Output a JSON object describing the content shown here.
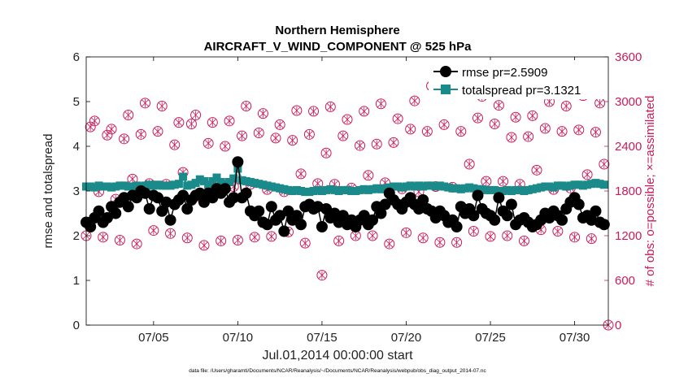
{
  "chart_data": {
    "type": "line",
    "title": "Northern Hemisphere",
    "subtitle": "AIRCRAFT_V_WIND_COMPONENT @ 525 hPa",
    "xlabel": "Jul.01,2014 00:00:00 start",
    "ylabel_left": "rmse and totalspread",
    "ylabel_right": "# of obs: o=possible; ×=assimilated",
    "footnote": "data file: /Users/gharamti/Documents/NCAR/Reanalysis/~/Documents/NCAR/Reanalysis/webpub/obs_diag_output_2014-07.nc",
    "xlim": [
      1,
      32
    ],
    "x_ticks": [
      5,
      10,
      15,
      20,
      25,
      30
    ],
    "x_tick_labels": [
      "07/05",
      "07/10",
      "07/15",
      "07/20",
      "07/25",
      "07/30"
    ],
    "ylim_left": [
      0,
      6
    ],
    "y_ticks_left": [
      "0",
      "1",
      "2",
      "3",
      "4",
      "5",
      "6"
    ],
    "ylim_right": [
      0,
      3600
    ],
    "y_ticks_right": [
      "0",
      "600",
      "1200",
      "1800",
      "2400",
      "3000",
      "3600"
    ],
    "legend": [
      "rmse pr=2.5909",
      "totalspread pr=3.1321"
    ],
    "legend_location": "top-right",
    "colors": {
      "rmse": "#000000",
      "totalspread": "#1a8a8a",
      "obs": "#cc1a5a"
    },
    "series": [
      {
        "name": "rmse pr=2.5909",
        "axis": "left",
        "x": [
          1.0,
          1.25,
          1.5,
          1.75,
          2.0,
          2.25,
          2.5,
          2.75,
          3.0,
          3.25,
          3.5,
          3.75,
          4.0,
          4.25,
          4.5,
          4.75,
          5.0,
          5.25,
          5.5,
          5.75,
          6.0,
          6.25,
          6.5,
          6.75,
          7.0,
          7.25,
          7.5,
          7.75,
          8.0,
          8.25,
          8.5,
          8.75,
          9.0,
          9.25,
          9.5,
          9.75,
          10.0,
          10.25,
          10.5,
          10.75,
          11.0,
          11.25,
          11.5,
          11.75,
          12.0,
          12.25,
          12.5,
          12.75,
          13.0,
          13.25,
          13.5,
          13.75,
          14.0,
          14.25,
          14.5,
          14.75,
          15.0,
          15.25,
          15.5,
          15.75,
          16.0,
          16.25,
          16.5,
          16.75,
          17.0,
          17.25,
          17.5,
          17.75,
          18.0,
          18.25,
          18.5,
          18.75,
          19.0,
          19.25,
          19.5,
          19.75,
          20.0,
          20.25,
          20.5,
          20.75,
          21.0,
          21.25,
          21.5,
          21.75,
          22.0,
          22.25,
          22.5,
          22.75,
          23.0,
          23.25,
          23.5,
          23.75,
          24.0,
          24.25,
          24.5,
          24.75,
          25.0,
          25.25,
          25.5,
          25.75,
          26.0,
          26.25,
          26.5,
          26.75,
          27.0,
          27.25,
          27.5,
          27.75,
          28.0,
          28.25,
          28.5,
          28.75,
          29.0,
          29.25,
          29.5,
          29.75,
          30.0,
          30.25,
          30.5,
          30.75,
          31.0,
          31.25,
          31.5,
          31.75
        ],
        "values": [
          2.3,
          2.2,
          2.4,
          2.55,
          2.3,
          2.4,
          2.65,
          2.5,
          2.75,
          2.85,
          2.65,
          2.9,
          2.85,
          3.0,
          2.95,
          2.6,
          2.9,
          2.85,
          2.55,
          2.75,
          2.35,
          2.7,
          2.8,
          2.9,
          2.6,
          2.8,
          2.9,
          2.95,
          2.75,
          2.95,
          2.85,
          3.05,
          2.95,
          3.05,
          2.75,
          2.85,
          3.65,
          2.85,
          2.95,
          2.55,
          2.45,
          2.55,
          2.3,
          2.25,
          2.65,
          2.35,
          2.45,
          2.1,
          2.55,
          2.35,
          2.45,
          2.25,
          2.65,
          2.7,
          2.6,
          2.65,
          2.2,
          2.6,
          2.4,
          2.5,
          2.3,
          2.45,
          2.25,
          2.35,
          2.2,
          2.35,
          2.45,
          2.25,
          2.35,
          2.65,
          2.5,
          2.7,
          2.95,
          2.8,
          2.7,
          2.6,
          2.75,
          2.85,
          2.7,
          2.6,
          2.8,
          2.6,
          2.55,
          2.4,
          2.55,
          2.45,
          2.3,
          2.35,
          2.2,
          2.65,
          2.5,
          2.6,
          2.45,
          2.9,
          2.6,
          2.5,
          2.45,
          2.35,
          2.85,
          2.55,
          2.45,
          2.7,
          2.25,
          2.35,
          2.4,
          2.3,
          2.2,
          2.25,
          2.35,
          2.5,
          2.4,
          2.55,
          2.45,
          2.35,
          2.6,
          2.75,
          2.85,
          2.7,
          2.4,
          2.45,
          2.35,
          2.55,
          2.3,
          2.25
        ]
      },
      {
        "name": "totalspread pr=3.1321",
        "axis": "left",
        "x": [
          1.0,
          1.25,
          1.5,
          1.75,
          2.0,
          2.25,
          2.5,
          2.75,
          3.0,
          3.25,
          3.5,
          3.75,
          4.0,
          4.25,
          4.5,
          4.75,
          5.0,
          5.25,
          5.5,
          5.75,
          6.0,
          6.25,
          6.5,
          6.75,
          7.0,
          7.25,
          7.5,
          7.75,
          8.0,
          8.25,
          8.5,
          8.75,
          9.0,
          9.25,
          9.5,
          9.75,
          10.0,
          10.25,
          10.5,
          10.75,
          11.0,
          11.25,
          11.5,
          11.75,
          12.0,
          12.25,
          12.5,
          12.75,
          13.0,
          13.25,
          13.5,
          13.75,
          14.0,
          14.25,
          14.5,
          14.75,
          15.0,
          15.25,
          15.5,
          15.75,
          16.0,
          16.25,
          16.5,
          16.75,
          17.0,
          17.25,
          17.5,
          17.75,
          18.0,
          18.25,
          18.5,
          18.75,
          19.0,
          19.25,
          19.5,
          19.75,
          20.0,
          20.25,
          20.5,
          20.75,
          21.0,
          21.25,
          21.5,
          21.75,
          22.0,
          22.25,
          22.5,
          22.75,
          23.0,
          23.25,
          23.5,
          23.75,
          24.0,
          24.25,
          24.5,
          24.75,
          25.0,
          25.25,
          25.5,
          25.75,
          26.0,
          26.25,
          26.5,
          26.75,
          27.0,
          27.25,
          27.5,
          27.75,
          28.0,
          28.25,
          28.5,
          28.75,
          29.0,
          29.25,
          29.5,
          29.75,
          30.0,
          30.25,
          30.5,
          30.75,
          31.0,
          31.25,
          31.5,
          31.75
        ],
        "values": [
          3.1,
          3.1,
          3.08,
          3.12,
          3.1,
          3.1,
          3.08,
          3.1,
          3.12,
          3.12,
          3.1,
          3.1,
          3.12,
          3.1,
          3.12,
          3.14,
          3.12,
          3.14,
          3.12,
          3.12,
          3.12,
          3.14,
          3.16,
          3.32,
          3.12,
          3.14,
          3.18,
          3.26,
          3.22,
          3.14,
          3.22,
          3.3,
          3.2,
          3.16,
          3.2,
          3.28,
          3.5,
          3.24,
          3.22,
          3.2,
          3.18,
          3.16,
          3.14,
          3.12,
          3.1,
          3.08,
          3.06,
          3.04,
          3.02,
          3.0,
          3.02,
          3.0,
          2.98,
          2.98,
          3.0,
          3.02,
          3.0,
          3.02,
          3.04,
          3.02,
          3.0,
          3.02,
          3.02,
          3.0,
          3.0,
          3.02,
          3.04,
          3.02,
          3.04,
          3.06,
          3.04,
          3.06,
          3.08,
          3.1,
          3.1,
          3.08,
          3.1,
          3.12,
          3.1,
          3.12,
          3.1,
          3.12,
          3.12,
          3.1,
          3.12,
          3.1,
          3.08,
          3.06,
          3.06,
          3.04,
          3.06,
          3.08,
          3.06,
          3.04,
          3.04,
          3.02,
          3.02,
          3.02,
          3.0,
          3.0,
          3.02,
          3.0,
          3.02,
          3.02,
          3.0,
          3.02,
          3.04,
          3.06,
          3.08,
          3.1,
          3.1,
          3.08,
          3.12,
          3.12,
          3.1,
          3.12,
          3.14,
          3.14,
          3.12,
          3.14,
          3.16,
          3.18,
          3.16,
          3.14
        ]
      },
      {
        "name": "obs possible",
        "axis": "right",
        "x": [
          1.0,
          1.25,
          1.5,
          1.75,
          2.0,
          2.25,
          2.5,
          2.75,
          3.0,
          3.25,
          3.5,
          3.75,
          4.0,
          4.25,
          4.5,
          4.75,
          5.0,
          5.25,
          5.5,
          5.75,
          6.0,
          6.25,
          6.5,
          6.75,
          7.0,
          7.25,
          7.5,
          7.75,
          8.0,
          8.25,
          8.5,
          8.75,
          9.0,
          9.25,
          9.5,
          9.75,
          10.0,
          10.25,
          10.5,
          10.75,
          11.0,
          11.25,
          11.5,
          11.75,
          12.0,
          12.25,
          12.5,
          12.75,
          13.0,
          13.25,
          13.5,
          13.75,
          14.0,
          14.25,
          14.5,
          14.75,
          15.0,
          15.25,
          15.5,
          15.75,
          16.0,
          16.25,
          16.5,
          16.75,
          17.0,
          17.25,
          17.5,
          17.75,
          18.0,
          18.25,
          18.5,
          18.75,
          19.0,
          19.25,
          19.5,
          19.75,
          20.0,
          20.25,
          20.5,
          20.75,
          21.0,
          21.25,
          21.5,
          21.75,
          22.0,
          22.25,
          22.5,
          22.75,
          23.0,
          23.25,
          23.5,
          23.75,
          24.0,
          24.25,
          24.5,
          24.75,
          25.0,
          25.25,
          25.5,
          25.75,
          26.0,
          26.25,
          26.5,
          26.75,
          27.0,
          27.25,
          27.5,
          27.75,
          28.0,
          28.25,
          28.5,
          28.75,
          29.0,
          29.25,
          29.5,
          29.75,
          30.0,
          30.25,
          30.5,
          30.75,
          31.0,
          31.25,
          31.5,
          31.75
        ],
        "values": [
          1200,
          2660,
          2740,
          1790,
          1180,
          2550,
          2630,
          1690,
          1140,
          2500,
          2820,
          1960,
          1090,
          2560,
          2980,
          1900,
          1270,
          2600,
          2940,
          1890,
          1230,
          2420,
          2720,
          2050,
          1170,
          2700,
          2820,
          1720,
          1070,
          2440,
          2720,
          1770,
          1130,
          2400,
          2740,
          1860,
          1140,
          2540,
          2940,
          1890,
          1180,
          2580,
          2840,
          1820,
          1190,
          2510,
          2690,
          1790,
          1250,
          2480,
          2880,
          2030,
          1100,
          2560,
          2870,
          1900,
          670,
          2310,
          2930,
          1890,
          1130,
          2540,
          2760,
          1840,
          1200,
          2410,
          2870,
          2010,
          1200,
          2430,
          2970,
          1910,
          1090,
          2450,
          2770,
          1830,
          1240,
          2630,
          3010,
          1790,
          1170,
          2600,
          3210,
          1860,
          1110,
          2690,
          3180,
          1850,
          1110,
          2600,
          3160,
          2160,
          1260,
          2780,
          3070,
          1930,
          1190,
          2700,
          2950,
          1930,
          1200,
          2520,
          2790,
          1890,
          1130,
          2530,
          2810,
          2080,
          1280,
          2640,
          3000,
          1820,
          1260,
          2600,
          2940,
          1840,
          1180,
          2620,
          3080,
          2020,
          1160,
          2590,
          2980,
          2160
        ]
      },
      {
        "name": "obs assimilated",
        "axis": "right",
        "x": [
          1.0,
          1.25,
          1.5,
          1.75,
          2.0,
          2.25,
          2.5,
          2.75,
          3.0,
          3.25,
          3.5,
          3.75,
          4.0,
          4.25,
          4.5,
          4.75,
          5.0,
          5.25,
          5.5,
          5.75,
          6.0,
          6.25,
          6.5,
          6.75,
          7.0,
          7.25,
          7.5,
          7.75,
          8.0,
          8.25,
          8.5,
          8.75,
          9.0,
          9.25,
          9.5,
          9.75,
          10.0,
          10.25,
          10.5,
          10.75,
          11.0,
          11.25,
          11.5,
          11.75,
          12.0,
          12.25,
          12.5,
          12.75,
          13.0,
          13.25,
          13.5,
          13.75,
          14.0,
          14.25,
          14.5,
          14.75,
          15.0,
          15.25,
          15.5,
          15.75,
          16.0,
          16.25,
          16.5,
          16.75,
          17.0,
          17.25,
          17.5,
          17.75,
          18.0,
          18.25,
          18.5,
          18.75,
          19.0,
          19.25,
          19.5,
          19.75,
          20.0,
          20.25,
          20.5,
          20.75,
          21.0,
          21.25,
          21.5,
          21.75,
          22.0,
          22.25,
          22.5,
          22.75,
          23.0,
          23.25,
          23.5,
          23.75,
          24.0,
          24.25,
          24.5,
          24.75,
          25.0,
          25.25,
          25.5,
          25.75,
          26.0,
          26.25,
          26.5,
          26.75,
          27.0,
          27.25,
          27.5,
          27.75,
          28.0,
          28.25,
          28.5,
          28.75,
          29.0,
          29.25,
          29.5,
          29.75,
          30.0,
          30.25,
          30.5,
          30.75,
          31.0,
          31.25,
          31.5,
          31.75
        ],
        "values": [
          1200,
          2660,
          2740,
          1790,
          1180,
          2550,
          2630,
          1690,
          1140,
          2500,
          2820,
          1960,
          1090,
          2560,
          2980,
          1900,
          1270,
          2600,
          2940,
          1890,
          1230,
          2420,
          2720,
          2050,
          1170,
          2700,
          2820,
          1720,
          1070,
          2440,
          2720,
          1770,
          1130,
          2400,
          2740,
          1860,
          1140,
          2540,
          2940,
          1890,
          1180,
          2580,
          2840,
          1820,
          1190,
          2510,
          2690,
          1790,
          1250,
          2480,
          2880,
          2030,
          1100,
          2560,
          2870,
          1900,
          670,
          2310,
          2930,
          1890,
          1130,
          2540,
          2760,
          1840,
          1200,
          2410,
          2870,
          2010,
          1200,
          2430,
          2970,
          1910,
          1090,
          2450,
          2770,
          1830,
          1240,
          2630,
          3010,
          1790,
          1170,
          2600,
          3210,
          1860,
          1110,
          2690,
          3180,
          1850,
          1110,
          2600,
          3160,
          2160,
          1260,
          2780,
          3070,
          1930,
          1190,
          2700,
          2950,
          1930,
          1200,
          2520,
          2790,
          1890,
          1130,
          2530,
          2810,
          2080,
          1280,
          2640,
          3000,
          1820,
          1260,
          2600,
          2940,
          1840,
          1180,
          2620,
          3080,
          2020,
          1160,
          2590,
          2980,
          2160
        ]
      }
    ],
    "extra_points": [
      {
        "series": "obs possible",
        "x": 32,
        "value": 0
      },
      {
        "series": "obs assimilated",
        "x": 32,
        "value": 0
      }
    ]
  }
}
